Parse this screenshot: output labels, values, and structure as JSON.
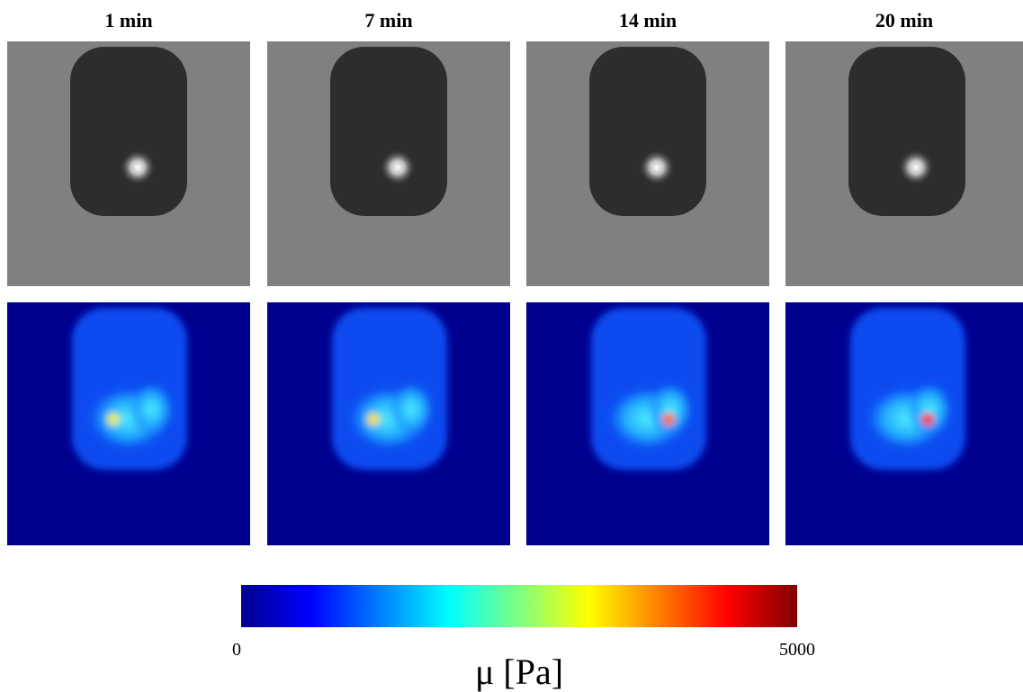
{
  "panels": [
    {
      "title": "1 min"
    },
    {
      "title": "7 min"
    },
    {
      "title": "14 min"
    },
    {
      "title": "20 min"
    }
  ],
  "colorbar": {
    "label": "μ [Pa]",
    "lim": [
      0,
      5000
    ],
    "ticks": [
      0,
      5000
    ]
  }
}
